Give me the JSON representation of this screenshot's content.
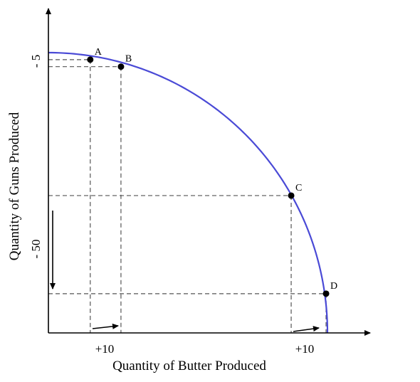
{
  "chart_data": {
    "type": "line",
    "title": "",
    "xlabel": "Quantity of Butter Produced",
    "ylabel": "Quantity of Guns Produced",
    "curve_color": "#4a4ad6",
    "axis_color": "#000000",
    "guide_color": "#555555",
    "points": [
      {
        "label": "A",
        "x": 0.15,
        "y": 0.975
      },
      {
        "label": "B",
        "x": 0.26,
        "y": 0.95
      },
      {
        "label": "C",
        "x": 0.87,
        "y": 0.49
      },
      {
        "label": "D",
        "x": 0.995,
        "y": 0.14
      }
    ],
    "annotations": {
      "guns_small_change": "- 5",
      "guns_large_change": "- 50",
      "butter_change_left": "+10",
      "butter_change_right": "+10"
    },
    "grid": false,
    "legend": "none"
  }
}
